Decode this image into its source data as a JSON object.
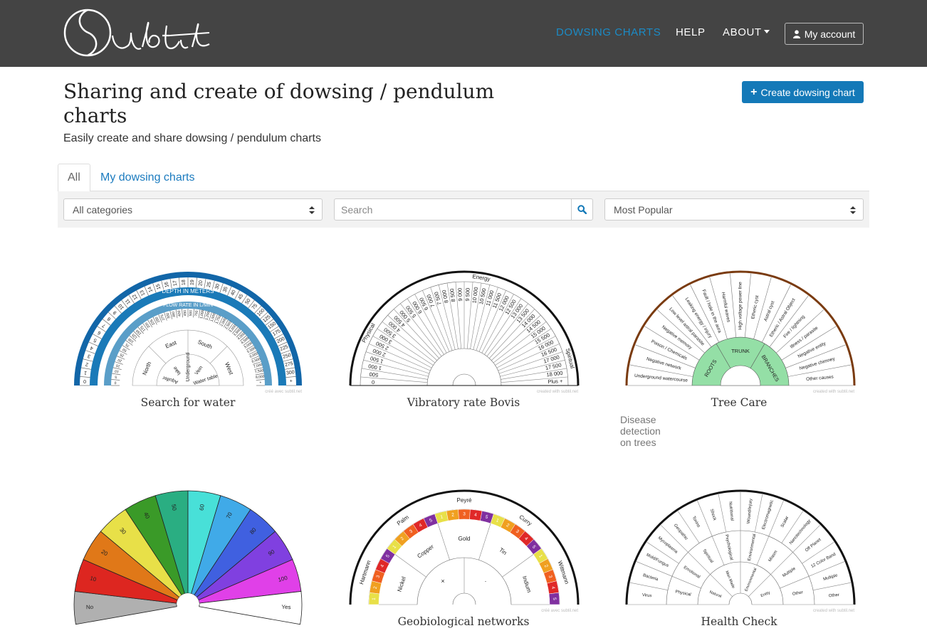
{
  "nav": {
    "brand": "Subtil",
    "links": [
      "DOWSING CHARTS",
      "HELP"
    ],
    "about_label": "ABOUT",
    "account_label": "My account"
  },
  "header": {
    "title": "Sharing and create of dowsing / pendulum charts",
    "subtitle": "Easily create and share dowsing / pendulum charts",
    "create_button": "Create dowsing chart"
  },
  "tabs": [
    "All",
    "My dowsing charts"
  ],
  "filters": {
    "category": "All categories",
    "search_placeholder": "Search",
    "sort": "Most Popular"
  },
  "colors": {
    "navbar": "#444444",
    "accent": "#1479b8",
    "active_link": "#1b8bc6"
  },
  "charts": [
    {
      "title": "Search for water",
      "description": "",
      "credit": "créé avec subtil.net",
      "band_labels": [
        "DEPTH IN METERS",
        "FLOW RATE IN L/MIN"
      ],
      "depth_values": [
        "0",
        "1",
        "2",
        "3",
        "4",
        "5",
        "6",
        "7",
        "8",
        "9",
        "10",
        "11",
        "12",
        "13",
        "14",
        "15",
        "16",
        "17",
        "18",
        "19",
        "20",
        "25",
        "30",
        "35",
        "40",
        "45",
        "50",
        "75",
        "100",
        "125",
        "150",
        "175",
        "200",
        "225",
        "250",
        "275",
        "300",
        "+"
      ],
      "flow_values": [
        "0",
        "5",
        "10",
        "15",
        "20",
        "25",
        "50",
        "75",
        "100",
        "125",
        "150",
        "175",
        "200",
        "225",
        "250",
        "275",
        "300",
        "350",
        "400",
        "450",
        "500",
        "750",
        "1,000",
        "1,250",
        "1,500",
        "1,750",
        "2,000",
        "2,500",
        "3,000",
        "3,500",
        "4,000",
        "4,500",
        "5,000",
        "5,500",
        "6,000",
        "6,500",
        "7,000",
        "7,500",
        "8,000",
        "+"
      ],
      "directions": [
        "North",
        "East",
        "South",
        "West"
      ],
      "water_types": [
        "Aquifer",
        "lake",
        "Underground",
        "Vein",
        "Water table"
      ]
    },
    {
      "title": "Vibratory rate Bovis",
      "description": "",
      "credit": "created with subtil.net",
      "zones": [
        "Physical",
        "Energy",
        "Spiritual"
      ],
      "values": [
        "0",
        "500",
        "1 000",
        "1 500",
        "2 000",
        "2 500",
        "3 000",
        "3 500",
        "4 000",
        "4 500",
        "5 000",
        "5 500",
        "6 000",
        "6 500",
        "7 000",
        "7 500",
        "8 000",
        "8 500",
        "9 000",
        "9 500",
        "10 000",
        "10 500",
        "11 000",
        "11 500",
        "12 000",
        "12 500",
        "13 000",
        "13 500",
        "14 000",
        "14 500",
        "15 000",
        "15 500",
        "16 000",
        "16 500",
        "17 000",
        "17 500",
        "18 000",
        "Plus +"
      ]
    },
    {
      "title": "Tree Care",
      "description": "Disease detection on trees",
      "credit": "created with subtil.net",
      "inner": [
        "ROOTS",
        "TRUNK",
        "BRANCHES"
      ],
      "causes": [
        "Underground watercourse",
        "Negative network",
        "Poison / Chemicals",
        "Negative memory",
        "Low level astral parasite",
        "Leaking energy / injury",
        "Fault / hole in the aura",
        "Harmful waves",
        "High voltage power line",
        "Etheric cyst",
        "Astral cyst",
        "Etheric / Astral Object",
        "Fire / lightning",
        "Illness / parasite",
        "Negative entity",
        "Negative chimney",
        "Other causes"
      ]
    },
    {
      "title": "",
      "description": "",
      "credit": "",
      "segments": [
        "No",
        "10",
        "20",
        "30",
        "40",
        "50",
        "60",
        "70",
        "80",
        "90",
        "100",
        "Yes"
      ],
      "segment_colors": [
        "#b0b0b0",
        "#dd2620",
        "#e07818",
        "#e8e048",
        "#3a9a28",
        "#2aae82",
        "#48e0d8",
        "#40aae8",
        "#4060e0",
        "#8040e0",
        "#e040e8",
        "#ffffff"
      ]
    },
    {
      "title": "Geobiological networks",
      "description": "",
      "credit": "créé avec subtil.net",
      "networks": [
        "Hartmann",
        "Palm",
        "Peyré",
        "Curry",
        "Wittmann"
      ],
      "metals": [
        "Nickel",
        "Copper",
        "Gold",
        "Tin",
        "Indium"
      ],
      "center": [
        "×",
        "·"
      ],
      "scale": [
        "1",
        "2",
        "3",
        "4",
        "5"
      ],
      "scale_colors": [
        "#e8e048",
        "#f0a020",
        "#f06020",
        "#e02828",
        "#8030a0"
      ]
    },
    {
      "title": "Health Check",
      "description": "",
      "credit": "created with subtil.net",
      "outer": [
        "Virus",
        "Bacteria",
        "Mold/Fungus",
        "Mycoplasma",
        "Geopathic",
        "Toxins",
        "Shock",
        "Nutritional",
        "Wound/Injury",
        "Electromagnetic",
        "Scalar",
        "Nanotechnology",
        "Off Planet",
        "12 Color Band",
        "Multiple",
        "Other"
      ],
      "middle": [
        "Physical",
        "Emotional",
        "Spiritual",
        "Psychological",
        "Environmental",
        "Miasm",
        "Multiple",
        "Other"
      ],
      "inner": [
        "Natural",
        "Man Made",
        "Environmental",
        "Entity"
      ]
    }
  ]
}
